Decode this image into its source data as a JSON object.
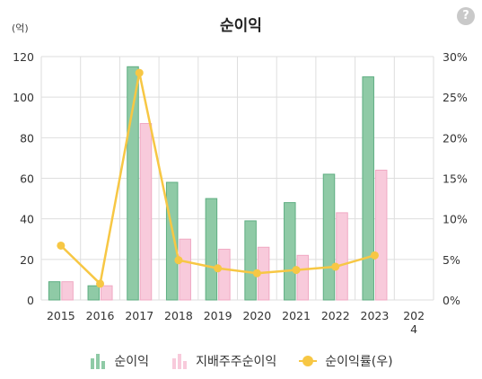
{
  "title": "순이익",
  "help_label": "?",
  "unit_label": "(억)",
  "colors": {
    "net_income": "#8fcaa6",
    "net_income_stroke": "#5fae82",
    "controlling": "#f8cadb",
    "controlling_stroke": "#f0a9c3",
    "margin_line": "#f7c744",
    "grid": "#dedede"
  },
  "legend": [
    {
      "label": "순이익",
      "icon": "bar-chart-icon"
    },
    {
      "label": "지배주주순이익",
      "icon": "bar-chart-icon"
    },
    {
      "label": "순이익률(우)",
      "icon": "line-dot-icon"
    }
  ],
  "chart_data": {
    "type": "bar",
    "categories": [
      "2015",
      "2016",
      "2017",
      "2018",
      "2019",
      "2020",
      "2021",
      "2022",
      "2023",
      "2024"
    ],
    "category_labels": [
      [
        "2015"
      ],
      [
        "2016"
      ],
      [
        "2017"
      ],
      [
        "2018"
      ],
      [
        "2019"
      ],
      [
        "2020"
      ],
      [
        "2021"
      ],
      [
        "2022"
      ],
      [
        "2023"
      ],
      [
        "202",
        "4"
      ]
    ],
    "series": [
      {
        "name": "순이익",
        "kind": "bar",
        "axis": "left",
        "values": [
          9,
          7,
          115,
          58,
          50,
          39,
          48,
          62,
          110,
          null
        ]
      },
      {
        "name": "지배주주순이익",
        "kind": "bar",
        "axis": "left",
        "values": [
          9,
          7,
          87,
          30,
          25,
          26,
          22,
          43,
          64,
          null
        ]
      },
      {
        "name": "순이익률(우)",
        "kind": "line",
        "axis": "right",
        "unit": "%",
        "values": [
          6.7,
          2.0,
          28.0,
          4.9,
          3.9,
          3.3,
          3.7,
          4.1,
          5.5,
          null
        ]
      }
    ],
    "y_left": {
      "ylim": [
        0,
        120
      ],
      "ticks": [
        "0",
        "20",
        "40",
        "60",
        "80",
        "100",
        "120"
      ]
    },
    "y_right": {
      "ylim": [
        0,
        30
      ],
      "ticks": [
        "0%",
        "5%",
        "10%",
        "15%",
        "20%",
        "25%",
        "30%"
      ]
    },
    "grid": true,
    "legend_position": "bottom"
  }
}
